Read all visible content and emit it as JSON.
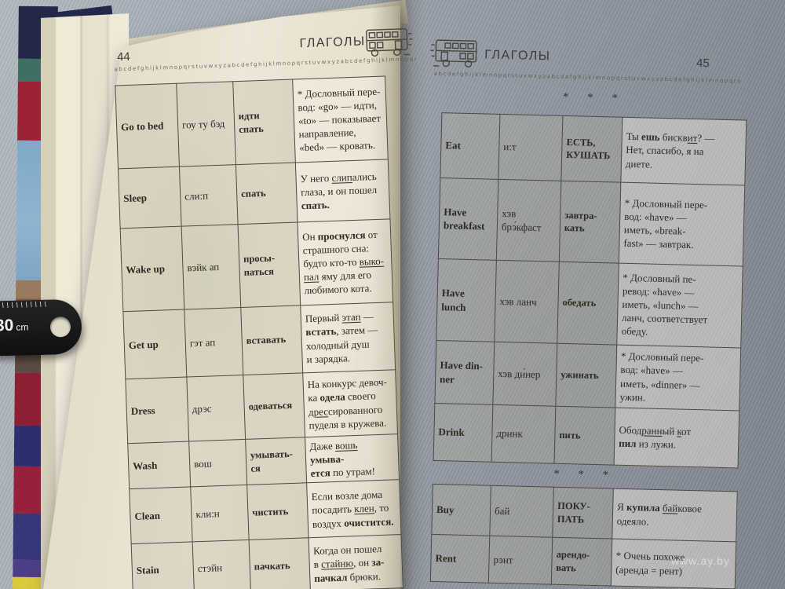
{
  "photo": {
    "watermark": "www.ay.by"
  },
  "ruler": {
    "value": "30",
    "unit": "cm"
  },
  "icons": {
    "header_icon": "double-decker-bus"
  },
  "colors": {
    "page_cream": "#eae5d4",
    "fabric": "#99a0aa",
    "cover_red": "#9c2136",
    "cover_navy": "#23284a",
    "cover_sky": "#7fa9c9",
    "cover_yellow": "#d9ca3c",
    "table_border": "#4d4a3f"
  },
  "left_page": {
    "title": "ГЛАГОЛЫ",
    "page_number": "44",
    "alphabet_line": "abcdefghijklmnopqrstuvwxyzabcdefghijklmnopqrstuvwxyzabcdefghijklmnopqrstuvwxyzabcdefghijklmnopqrstuvwxyzabcdefghijklmnopqrstuvwxyz",
    "rows": [
      {
        "en": "Go to bed",
        "tr": "гоу ту бэд",
        "ru": "идти\nспать",
        "example": [
          {
            "t": "* Дословный пере-\nвод: «go» — идти,\n«to» — показывает\nнаправление,\n«bed» — кровать."
          }
        ]
      },
      {
        "en": "Sleep",
        "tr": "сли:п",
        "ru": "спать",
        "example": [
          {
            "t": "У него "
          },
          {
            "t": "слип",
            "u": 1
          },
          {
            "t": "ались\nглаза, и он пошел\n"
          },
          {
            "t": "спать.",
            "b": 1
          }
        ]
      },
      {
        "en": "Wake up",
        "tr": "вэйк ап",
        "ru": "просы-\nпаться",
        "example": [
          {
            "t": "Он "
          },
          {
            "t": "проснулся",
            "b": 1
          },
          {
            "t": " от\nстрашного сна:\nбудто кто-то "
          },
          {
            "t": "выко-\nпал",
            "u": 1
          },
          {
            "t": " яму для его\nлюбимого кота."
          }
        ]
      },
      {
        "en": "Get up",
        "tr": "гэт ап",
        "ru": "вставать",
        "example": [
          {
            "t": "Первый "
          },
          {
            "t": "этап",
            "u": 1
          },
          {
            "t": " —\n"
          },
          {
            "t": "встать",
            "b": 1
          },
          {
            "t": ", затем —\nхолодный душ\nи зарядка."
          }
        ]
      },
      {
        "en": "Dress",
        "tr": "дрэс",
        "ru": "одеваться",
        "example": [
          {
            "t": "На конкурс девоч-\nка "
          },
          {
            "t": "одела",
            "b": 1
          },
          {
            "t": " своего\n"
          },
          {
            "t": "дрес",
            "u": 1
          },
          {
            "t": "сированного\nпуделя в кружева."
          }
        ]
      },
      {
        "en": "Wash",
        "tr": "вош",
        "ru": "умывать-\nся",
        "example": [
          {
            "t": "Даже "
          },
          {
            "t": "вошь",
            "u": 1
          },
          {
            "t": " "
          },
          {
            "t": "умыва-\nется",
            "b": 1
          },
          {
            "t": " по утрам!"
          }
        ]
      },
      {
        "en": "Clean",
        "tr": "кли:н",
        "ru": "чистить",
        "example": [
          {
            "t": "Если возле дома\nпосадить "
          },
          {
            "t": "клен",
            "u": 1
          },
          {
            "t": ", то\nвоздух "
          },
          {
            "t": "очистится.",
            "b": 1
          }
        ]
      },
      {
        "en": "Stain",
        "tr": "стэйн",
        "ru": "пачкать",
        "example": [
          {
            "t": "Когда он пошел\nв "
          },
          {
            "t": "стайню",
            "u": 1
          },
          {
            "t": ", он "
          },
          {
            "t": "за-\nпачкал",
            "b": 1
          },
          {
            "t": " брюки."
          }
        ]
      }
    ]
  },
  "right_page": {
    "title": "ГЛАГОЛЫ",
    "page_number": "45",
    "alphabet_line": "abcdefghijklmnopqrstuvwxyzabcdefghijklmnopqrstuvwxyzabcdefghijklmnopqrstuvwxyzabcdefghijklmnopqrstuvwxyzabcdefghijklmnopqrstuvwxyz",
    "separator": "* * *",
    "table1": {
      "rows": [
        {
          "en": "Eat",
          "tr": "и:т",
          "ru": "ЕСТЬ,\nКУШАТЬ",
          "example": [
            {
              "t": "Ты "
            },
            {
              "t": "ешь",
              "b": 1
            },
            {
              "t": " бискв"
            },
            {
              "t": "ит",
              "u": 1
            },
            {
              "t": "? —\nНет, спасибо, я на\nдиете."
            }
          ]
        },
        {
          "en": "Have\nbreakfast",
          "tr": "хэв\nбрэ́кфаст",
          "ru": "завтра-\nкать",
          "example": [
            {
              "t": "* Дословный пере-\nвод: «have» —\nиметь, «break-\nfast» — завтрак."
            }
          ]
        },
        {
          "en": "Have\nlunch",
          "tr": "хэв ланч",
          "ru": "обедать",
          "example": [
            {
              "t": "* Дословный пе-\nревод: «have» —\nиметь, «lunch» —\nланч, соответствует\nобеду."
            }
          ]
        },
        {
          "en": "Have din-\nner",
          "tr": "хэв ди́нер",
          "ru": "ужинать",
          "example": [
            {
              "t": "* Дословный пере-\nвод: «have» —\nиметь, «dinner» —\nужин."
            }
          ]
        },
        {
          "en": "Drink",
          "tr": "дринк",
          "ru": "пить",
          "example": [
            {
              "t": "Обо"
            },
            {
              "t": "дранн",
              "u": 1
            },
            {
              "t": "ый "
            },
            {
              "t": "к",
              "u": 1
            },
            {
              "t": "от\n"
            },
            {
              "t": "пил",
              "b": 1
            },
            {
              "t": " из лужи."
            }
          ]
        }
      ]
    },
    "table2": {
      "rows": [
        {
          "en": "Buy",
          "tr": "бай",
          "ru": "ПОКУ-\nПАТЬ",
          "example": [
            {
              "t": "Я "
            },
            {
              "t": "купила",
              "b": 1
            },
            {
              "t": " "
            },
            {
              "t": "бай",
              "u": 1
            },
            {
              "t": "ковое\nодеяло."
            }
          ]
        },
        {
          "en": "Rent",
          "tr": "рэнт",
          "ru": "арендо-\nвать",
          "example": [
            {
              "t": "* Очень похоже\n(аренда = рент)"
            }
          ]
        }
      ]
    }
  }
}
